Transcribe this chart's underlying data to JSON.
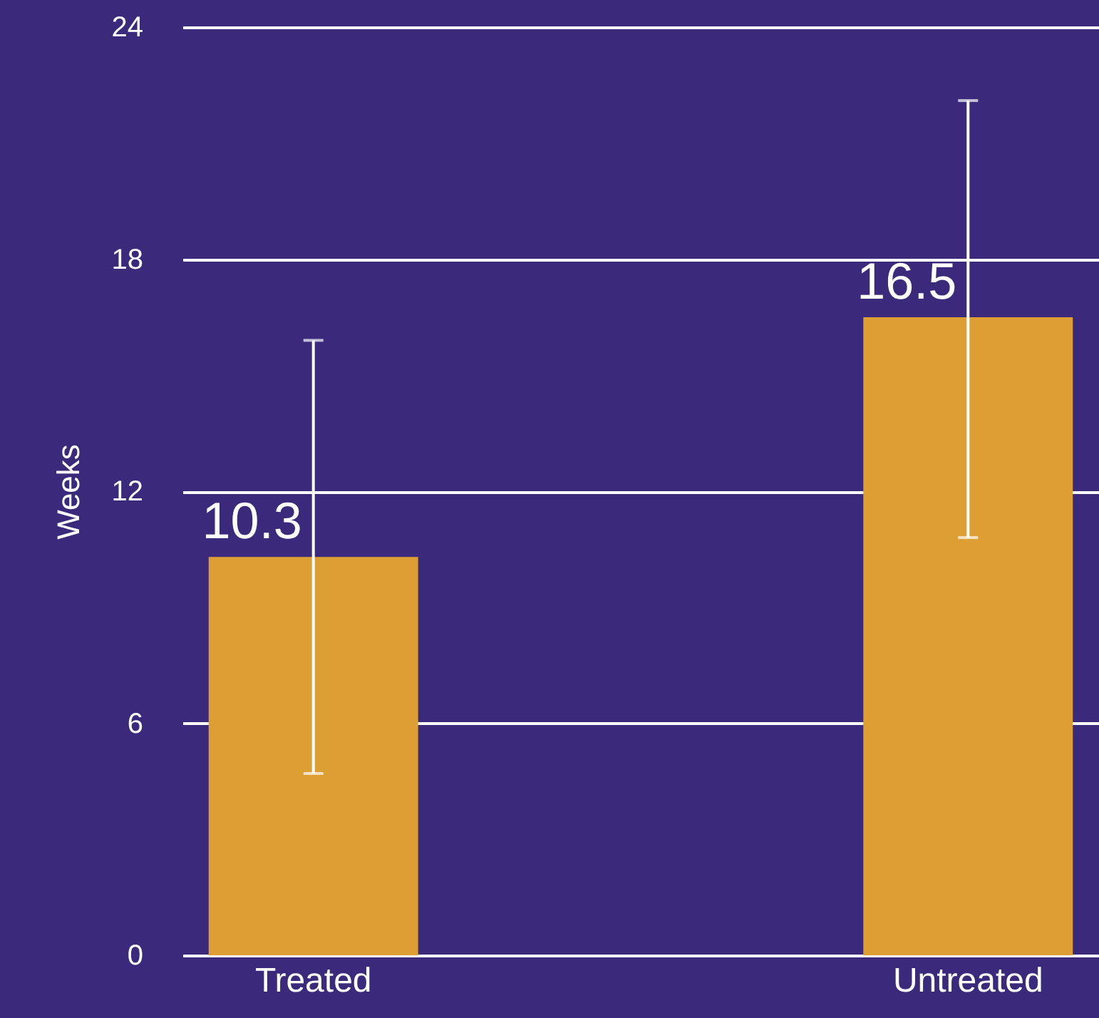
{
  "chart_data": {
    "type": "bar",
    "ylabel": "Weeks",
    "categories": [
      "Treated",
      "Untreated"
    ],
    "values": [
      10.3,
      16.5
    ],
    "errors": [
      [
        4.7,
        15.9
      ],
      [
        10.8,
        22.1
      ]
    ],
    "color": "#dd9e33",
    "ylim": [
      0,
      24
    ],
    "yticks": [
      0,
      6,
      12,
      18,
      24
    ],
    "grid": "y",
    "data_labels": true
  }
}
